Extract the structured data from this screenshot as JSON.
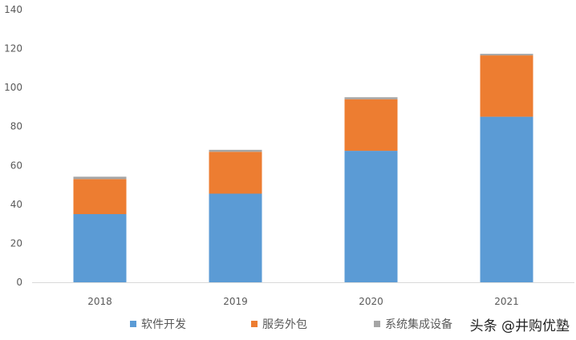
{
  "chart_data": {
    "type": "bar",
    "stacked": true,
    "title": "",
    "xlabel": "",
    "ylabel": "",
    "categories": [
      "2018",
      "2019",
      "2020",
      "2021"
    ],
    "ylim": [
      0,
      140
    ],
    "yticks": [
      0,
      20,
      40,
      60,
      80,
      100,
      120,
      140
    ],
    "grid": false,
    "legend_position": "bottom",
    "series": [
      {
        "name": "软件开发",
        "color": "#5B9BD5",
        "values": [
          35,
          45.5,
          67.5,
          85
        ]
      },
      {
        "name": "服务外包",
        "color": "#ED7D31",
        "values": [
          18,
          21.5,
          26.5,
          31.5
        ]
      },
      {
        "name": "系统集成设备",
        "color": "#A5A5A5",
        "values": [
          1.2,
          1,
          1,
          0.8
        ]
      }
    ]
  },
  "watermark": "头条 @井购优塾"
}
